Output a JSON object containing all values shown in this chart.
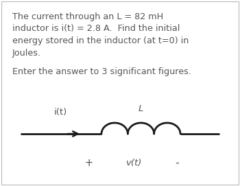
{
  "background_color": "#ffffff",
  "border_color": "#bbbbbb",
  "text_lines": [
    "The current through an L = 82 mH",
    "inductor is i(t) = 2.8 A.  Find the initial",
    "energy stored in the inductor (at t=0) in",
    "Joules."
  ],
  "text2": "Enter the answer to 3 significant figures.",
  "label_it": "i(t)",
  "label_L": "L",
  "label_plus": "+",
  "label_vt": "v(t)",
  "label_minus": "-",
  "text_color": "#555555",
  "line_color": "#1a1a1a",
  "font_size_body": 9.2,
  "font_size_circuit": 9.5
}
